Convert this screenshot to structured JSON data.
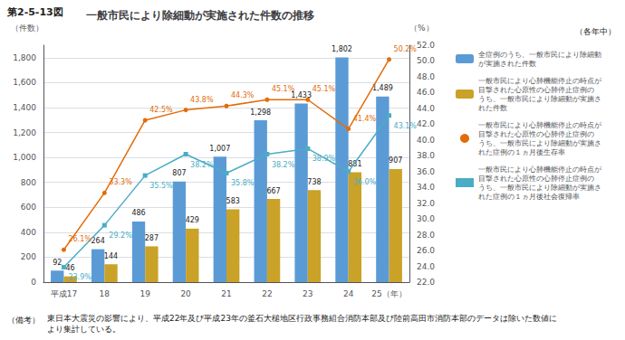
{
  "chart_data": {
    "type": "bar",
    "title": "一般市民により除細動が実施された件数の推移",
    "annotations": [
      "第2-5-13図",
      "（各年中）",
      "（備考）",
      "東日本大震災の影響により、平成22年及び平成23年の釜石大槌地区行政事務組合消防本部及び陸前高田市消防本部のデータは除いた数値に\nより集計している。"
    ],
    "ylabel": "（件数）",
    "y2label": "（%）",
    "categories": [
      "平成17",
      "18",
      "19",
      "20",
      "21",
      "22",
      "23",
      "24",
      "25（年）"
    ],
    "series": [
      {
        "name": "全症例のうち、一般市民により除細動\nが実施された件数",
        "type": "bar",
        "color": "#5b9bd5",
        "values": [
          92,
          264,
          486,
          807,
          1007,
          1298,
          1433,
          1802,
          1489
        ],
        "value_labels": [
          "92",
          "264",
          "486",
          "807",
          "1,007",
          "1,298",
          "1,433",
          "1,802",
          "1,489"
        ]
      },
      {
        "name": "一般市民により心肺機能停止の時点が\n目撃された心原性の心肺停止症例の\nうち、一般市民により除細動が実施さ\nれた件数",
        "type": "bar",
        "color": "#c9a227",
        "values": [
          46,
          144,
          287,
          429,
          583,
          667,
          738,
          881,
          907
        ]
      },
      {
        "name": "一般市民により心肺機能停止の時点が\n目撃された心原性の心肺停止症例の\nうち、一般市民により除細動が実施さ\nれた症例の１ヵ月後生存率",
        "type": "line",
        "axis": "y2",
        "color": "#e36c09",
        "marker": "circle",
        "values": [
          26.1,
          33.3,
          42.5,
          43.8,
          44.3,
          45.1,
          45.1,
          41.4,
          50.2
        ],
        "value_labels": [
          "26.1%",
          "33.3%",
          "42.5%",
          "43.8%",
          "44.3%",
          "45.1%",
          "45.1%",
          "41.4%",
          "50.2%"
        ]
      },
      {
        "name": "一般市民により心肺機能停止の時点が\n目撃された心原性の心肺停止症例の\nうち、一般市民により除細動が実施さ\nれた症例の１ヵ月後社会復帰率",
        "type": "line",
        "axis": "y2",
        "color": "#4bacc6",
        "marker": "square",
        "values": [
          23.9,
          29.2,
          35.5,
          38.2,
          35.8,
          38.2,
          38.9,
          36.0,
          43.1
        ],
        "value_labels": [
          "23.9%",
          "29.2%",
          "35.5%",
          "38.2%",
          "35.8%",
          "38.2%",
          "38.9%",
          "36.0%",
          "43.1%"
        ]
      }
    ],
    "ylim": [
      0,
      1900
    ],
    "yticks": [
      0,
      200,
      400,
      600,
      800,
      {
        "value": 1000,
        "label": "1,000"
      },
      {
        "value": 1200,
        "label": "1,200"
      },
      {
        "value": 1400,
        "label": "1,400"
      },
      {
        "value": 1600,
        "label": "1,600"
      },
      {
        "value": 1800,
        "label": "1,800"
      }
    ],
    "y2lim": [
      22.0,
      52.0
    ],
    "y2ticks": [
      {
        "value": 22,
        "label": "22.0"
      },
      {
        "value": 24,
        "label": "24.0"
      },
      {
        "value": 26,
        "label": "26.0"
      },
      {
        "value": 28,
        "label": "28.0"
      },
      {
        "value": 30,
        "label": "30.0"
      },
      {
        "value": 32,
        "label": "32.0"
      },
      {
        "value": 34,
        "label": "34.0"
      },
      {
        "value": 36,
        "label": "36.0"
      },
      {
        "value": 38,
        "label": "38.0"
      },
      {
        "value": 40,
        "label": "40.0"
      },
      {
        "value": 42,
        "label": "42.0"
      },
      {
        "value": 44,
        "label": "44.0"
      },
      {
        "value": 46,
        "label": "46.0"
      },
      {
        "value": 48,
        "label": "48.0"
      },
      {
        "value": 50,
        "label": "50.0"
      },
      {
        "value": 52,
        "label": "52.0"
      }
    ],
    "grid": true,
    "legend": "right",
    "data_labels": true
  }
}
